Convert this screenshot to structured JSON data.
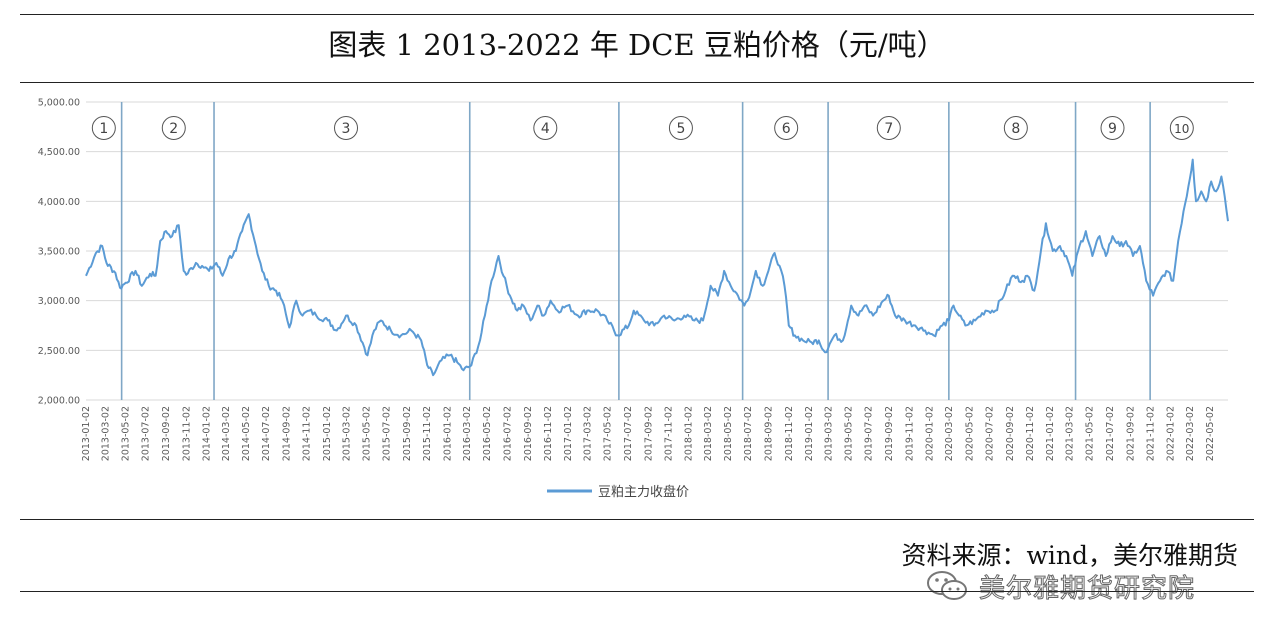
{
  "title": "图表 1 2013-2022 年 DCE 豆粕价格（元/吨）",
  "source": "资料来源：wind，美尔雅期货",
  "watermark": {
    "text": "美尔雅期货研究院",
    "icon": "wechat-icon"
  },
  "colors": {
    "line": "#5b9bd5",
    "grid": "#d9d9d9",
    "divider": "#7fa7c6",
    "axis_text": "#595959",
    "rule": "#222222"
  },
  "chart_data": {
    "type": "line",
    "title": "",
    "xlabel": "",
    "ylabel": "",
    "ylim": [
      2000,
      5000
    ],
    "yticks": [
      "2,000.00",
      "2,500.00",
      "3,000.00",
      "3,500.00",
      "4,000.00",
      "4,500.00",
      "5,000.00"
    ],
    "grid": true,
    "legend": "bottom-center",
    "x_ticks": [
      "2013-01-02",
      "2013-03-02",
      "2013-05-02",
      "2013-07-02",
      "2013-09-02",
      "2013-11-02",
      "2014-01-02",
      "2014-03-02",
      "2014-05-02",
      "2014-07-02",
      "2014-09-02",
      "2014-11-02",
      "2015-01-02",
      "2015-03-02",
      "2015-05-02",
      "2015-07-02",
      "2015-09-02",
      "2015-11-02",
      "2016-01-02",
      "2016-03-02",
      "2016-05-02",
      "2016-07-02",
      "2016-09-02",
      "2016-11-02",
      "2017-01-02",
      "2017-03-02",
      "2017-05-02",
      "2017-07-02",
      "2017-09-02",
      "2017-11-02",
      "2018-01-02",
      "2018-03-02",
      "2018-05-02",
      "2018-07-02",
      "2018-09-02",
      "2018-11-02",
      "2019-01-02",
      "2019-03-02",
      "2019-05-02",
      "2019-07-02",
      "2019-09-02",
      "2019-11-02",
      "2020-01-02",
      "2020-03-02",
      "2020-05-02",
      "2020-07-02",
      "2020-09-02",
      "2020-11-02",
      "2021-01-02",
      "2021-03-02",
      "2021-05-02",
      "2021-07-02",
      "2021-09-02",
      "2021-11-02",
      "2022-01-02",
      "2022-03-02",
      "2022-05-02"
    ],
    "series": [
      {
        "name": "豆粕主力收盘价",
        "points": [
          [
            "2013-01-02",
            3250
          ],
          [
            "2013-02-01",
            3480
          ],
          [
            "2013-02-20",
            3550
          ],
          [
            "2013-03-05",
            3380
          ],
          [
            "2013-04-01",
            3280
          ],
          [
            "2013-04-15",
            3130
          ],
          [
            "2013-05-02",
            3180
          ],
          [
            "2013-06-01",
            3300
          ],
          [
            "2013-06-20",
            3150
          ],
          [
            "2013-07-15",
            3270
          ],
          [
            "2013-08-01",
            3250
          ],
          [
            "2013-08-15",
            3600
          ],
          [
            "2013-09-01",
            3700
          ],
          [
            "2013-09-20",
            3650
          ],
          [
            "2013-10-10",
            3760
          ],
          [
            "2013-10-25",
            3300
          ],
          [
            "2013-11-02",
            3260
          ],
          [
            "2013-12-01",
            3380
          ],
          [
            "2013-12-20",
            3350
          ],
          [
            "2014-01-10",
            3300
          ],
          [
            "2014-02-01",
            3380
          ],
          [
            "2014-02-20",
            3250
          ],
          [
            "2014-03-10",
            3420
          ],
          [
            "2014-04-01",
            3500
          ],
          [
            "2014-04-20",
            3700
          ],
          [
            "2014-05-10",
            3870
          ],
          [
            "2014-06-01",
            3550
          ],
          [
            "2014-06-20",
            3300
          ],
          [
            "2014-07-10",
            3150
          ],
          [
            "2014-08-01",
            3100
          ],
          [
            "2014-08-20",
            3000
          ],
          [
            "2014-09-10",
            2730
          ],
          [
            "2014-10-01",
            3000
          ],
          [
            "2014-10-20",
            2850
          ],
          [
            "2014-11-10",
            2900
          ],
          [
            "2014-12-01",
            2850
          ],
          [
            "2015-01-05",
            2800
          ],
          [
            "2015-02-01",
            2700
          ],
          [
            "2015-03-01",
            2850
          ],
          [
            "2015-04-01",
            2750
          ],
          [
            "2015-05-05",
            2450
          ],
          [
            "2015-05-25",
            2700
          ],
          [
            "2015-06-15",
            2800
          ],
          [
            "2015-07-15",
            2700
          ],
          [
            "2015-08-15",
            2650
          ],
          [
            "2015-09-15",
            2700
          ],
          [
            "2015-10-15",
            2600
          ],
          [
            "2015-11-02",
            2350
          ],
          [
            "2015-11-20",
            2250
          ],
          [
            "2015-12-15",
            2400
          ],
          [
            "2016-01-10",
            2450
          ],
          [
            "2016-02-01",
            2380
          ],
          [
            "2016-02-20",
            2300
          ],
          [
            "2016-03-15",
            2350
          ],
          [
            "2016-04-10",
            2600
          ],
          [
            "2016-04-25",
            2850
          ],
          [
            "2016-05-15",
            3200
          ],
          [
            "2016-06-05",
            3450
          ],
          [
            "2016-06-20",
            3250
          ],
          [
            "2016-07-10",
            3050
          ],
          [
            "2016-08-01",
            2900
          ],
          [
            "2016-08-20",
            2950
          ],
          [
            "2016-09-10",
            2800
          ],
          [
            "2016-10-01",
            2950
          ],
          [
            "2016-10-20",
            2850
          ],
          [
            "2016-11-10",
            3000
          ],
          [
            "2016-12-01",
            2900
          ],
          [
            "2017-01-01",
            2950
          ],
          [
            "2017-02-01",
            2850
          ],
          [
            "2017-03-01",
            2900
          ],
          [
            "2017-04-01",
            2900
          ],
          [
            "2017-05-01",
            2800
          ],
          [
            "2017-06-01",
            2650
          ],
          [
            "2017-07-05",
            2750
          ],
          [
            "2017-07-20",
            2900
          ],
          [
            "2017-08-20",
            2800
          ],
          [
            "2017-09-20",
            2750
          ],
          [
            "2017-10-20",
            2850
          ],
          [
            "2017-11-20",
            2800
          ],
          [
            "2017-12-20",
            2850
          ],
          [
            "2018-01-20",
            2800
          ],
          [
            "2018-02-15",
            2800
          ],
          [
            "2018-03-10",
            3150
          ],
          [
            "2018-04-01",
            3050
          ],
          [
            "2018-04-20",
            3300
          ],
          [
            "2018-05-10",
            3150
          ],
          [
            "2018-06-01",
            3050
          ],
          [
            "2018-06-20",
            2950
          ],
          [
            "2018-07-10",
            3100
          ],
          [
            "2018-07-25",
            3300
          ],
          [
            "2018-08-15",
            3150
          ],
          [
            "2018-09-01",
            3300
          ],
          [
            "2018-09-20",
            3480
          ],
          [
            "2018-10-05",
            3350
          ],
          [
            "2018-10-20",
            3150
          ],
          [
            "2018-11-02",
            2750
          ],
          [
            "2018-11-20",
            2650
          ],
          [
            "2018-12-15",
            2600
          ],
          [
            "2019-01-10",
            2580
          ],
          [
            "2019-02-01",
            2600
          ],
          [
            "2019-02-20",
            2480
          ],
          [
            "2019-03-20",
            2650
          ],
          [
            "2019-04-15",
            2600
          ],
          [
            "2019-05-10",
            2950
          ],
          [
            "2019-06-01",
            2850
          ],
          [
            "2019-06-20",
            2950
          ],
          [
            "2019-07-15",
            2850
          ],
          [
            "2019-08-15",
            3000
          ],
          [
            "2019-09-01",
            3050
          ],
          [
            "2019-09-20",
            2850
          ],
          [
            "2019-10-20",
            2800
          ],
          [
            "2019-11-20",
            2750
          ],
          [
            "2019-12-20",
            2700
          ],
          [
            "2020-01-15",
            2650
          ],
          [
            "2020-02-10",
            2750
          ],
          [
            "2020-03-01",
            2800
          ],
          [
            "2020-03-15",
            2950
          ],
          [
            "2020-04-01",
            2850
          ],
          [
            "2020-04-20",
            2750
          ],
          [
            "2020-05-20",
            2800
          ],
          [
            "2020-06-20",
            2900
          ],
          [
            "2020-07-20",
            2900
          ],
          [
            "2020-08-20",
            3100
          ],
          [
            "2020-09-10",
            3250
          ],
          [
            "2020-10-10",
            3200
          ],
          [
            "2020-10-25",
            3250
          ],
          [
            "2020-11-15",
            3100
          ],
          [
            "2020-12-05",
            3500
          ],
          [
            "2020-12-20",
            3780
          ],
          [
            "2021-01-10",
            3500
          ],
          [
            "2021-02-01",
            3550
          ],
          [
            "2021-02-20",
            3450
          ],
          [
            "2021-03-10",
            3250
          ],
          [
            "2021-04-01",
            3550
          ],
          [
            "2021-04-20",
            3700
          ],
          [
            "2021-05-10",
            3450
          ],
          [
            "2021-06-01",
            3650
          ],
          [
            "2021-06-20",
            3450
          ],
          [
            "2021-07-10",
            3650
          ],
          [
            "2021-08-01",
            3550
          ],
          [
            "2021-08-20",
            3600
          ],
          [
            "2021-09-10",
            3450
          ],
          [
            "2021-10-01",
            3550
          ],
          [
            "2021-10-20",
            3200
          ],
          [
            "2021-11-10",
            3050
          ],
          [
            "2021-12-01",
            3200
          ],
          [
            "2021-12-20",
            3300
          ],
          [
            "2022-01-10",
            3200
          ],
          [
            "2022-01-25",
            3600
          ],
          [
            "2022-02-10",
            3900
          ],
          [
            "2022-02-25",
            4150
          ],
          [
            "2022-03-10",
            4420
          ],
          [
            "2022-03-20",
            4000
          ],
          [
            "2022-04-05",
            4100
          ],
          [
            "2022-04-20",
            4000
          ],
          [
            "2022-05-05",
            4200
          ],
          [
            "2022-05-20",
            4100
          ],
          [
            "2022-06-05",
            4250
          ],
          [
            "2022-06-15",
            4050
          ],
          [
            "2022-06-25",
            3800
          ]
        ]
      }
    ],
    "period_dividers": [
      "2013-04-20",
      "2014-01-25",
      "2016-03-10",
      "2017-06-05",
      "2018-06-15",
      "2019-03-01",
      "2020-03-01",
      "2021-03-20",
      "2021-11-01"
    ],
    "period_labels": [
      {
        "label": "1",
        "at": "2013-02-25"
      },
      {
        "label": "2",
        "at": "2013-09-25"
      },
      {
        "label": "3",
        "at": "2015-03-01"
      },
      {
        "label": "4",
        "at": "2016-10-25"
      },
      {
        "label": "5",
        "at": "2017-12-10"
      },
      {
        "label": "6",
        "at": "2018-10-25"
      },
      {
        "label": "7",
        "at": "2019-09-01"
      },
      {
        "label": "8",
        "at": "2020-09-20"
      },
      {
        "label": "9",
        "at": "2021-07-10"
      },
      {
        "label": "10",
        "at": "2022-02-05"
      }
    ]
  }
}
